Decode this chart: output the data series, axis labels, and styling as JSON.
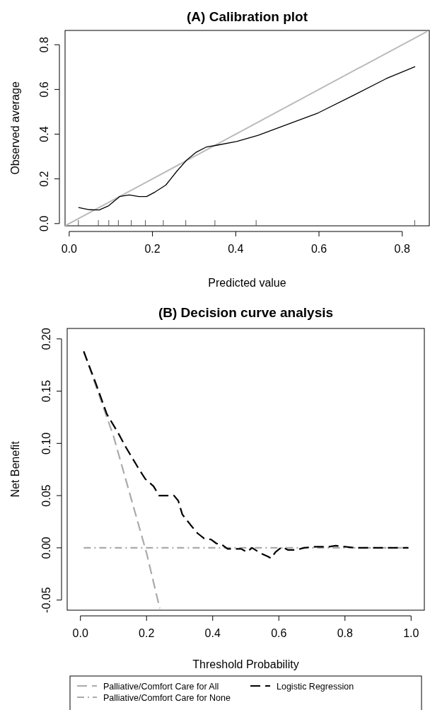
{
  "chart_data": [
    {
      "type": "line",
      "title": "(A) Calibration plot",
      "xlabel": "Predicted value",
      "ylabel": "Observed average",
      "xlim": [
        -0.01,
        0.865
      ],
      "ylim": [
        -0.01,
        0.864
      ],
      "xticks": [
        {
          "value": 0,
          "label": "0.0"
        },
        0.2,
        0.4,
        0.6,
        0.8,
        {
          "value": 0.022,
          "label": null
        },
        {
          "value": 0.07,
          "label": null
        },
        {
          "value": 0.095,
          "label": null
        },
        {
          "value": 0.118,
          "label": null
        },
        {
          "value": 0.149,
          "label": null
        },
        {
          "value": 0.183,
          "label": null
        },
        {
          "value": 0.226,
          "label": null
        },
        {
          "value": 0.28,
          "label": null
        },
        {
          "value": 0.35,
          "label": null
        },
        {
          "value": 0.449,
          "label": null
        },
        {
          "value": 0.83,
          "label": null
        }
      ],
      "yticks": [
        {
          "value": 0,
          "label": "0.0"
        },
        0.2,
        0.4,
        0.6,
        0.8
      ],
      "grid": false,
      "legend": false,
      "series": [
        {
          "color": "#bbbbbb",
          "line_style": "solid",
          "x": [
            -0.01,
            0.86
          ],
          "values": [
            -0.01,
            0.86
          ]
        },
        {
          "color": "#000000",
          "line_style": "solid",
          "x": [
            0.022,
            0.049,
            0.072,
            0.095,
            0.121,
            0.144,
            0.167,
            0.186,
            0.206,
            0.232,
            0.258,
            0.281,
            0.304,
            0.33,
            0.356,
            0.402,
            0.454,
            0.519,
            0.598,
            0.683,
            0.761,
            0.831
          ],
          "values": [
            0.072,
            0.062,
            0.061,
            0.08,
            0.121,
            0.128,
            0.121,
            0.121,
            0.141,
            0.172,
            0.233,
            0.282,
            0.318,
            0.343,
            0.351,
            0.367,
            0.395,
            0.44,
            0.495,
            0.574,
            0.648,
            0.702
          ]
        }
      ]
    },
    {
      "type": "line",
      "title": "(B) Decision curve analysis",
      "xlabel": "Threshold Probability",
      "ylabel": "Net Benefit",
      "xlim": [
        -0.04,
        1.04
      ],
      "ylim": [
        -0.0597,
        0.21
      ],
      "xticks": [
        {
          "value": 0,
          "label": "0.0"
        },
        0.2,
        0.4,
        0.6,
        0.8,
        {
          "value": 1,
          "label": "1.0"
        }
      ],
      "yticks": [
        {
          "value": -0.05,
          "label": "-0.05"
        },
        {
          "value": 0,
          "label": "0.00"
        },
        {
          "value": 0.05,
          "label": "0.05"
        },
        {
          "value": 0.1,
          "label": "0.10"
        },
        {
          "value": 0.15,
          "label": "0.15"
        },
        {
          "value": 0.2,
          "label": "0.20"
        }
      ],
      "grid": false,
      "legend": "bottom",
      "series": [
        {
          "name": "Palliative/Comfort Care for All",
          "color": "#aaaaaa",
          "line_style": "dashed",
          "x": [
            0.01,
            0.1,
            0.2,
            0.24
          ],
          "values": [
            0.188,
            0.107,
            -0.005,
            -0.058
          ]
        },
        {
          "name": "Palliative/Comfort Care for None",
          "color": "#aaaaaa",
          "line_style": "dotted",
          "x": [
            0.01,
            0.99
          ],
          "values": [
            0,
            0
          ]
        },
        {
          "name": "Logistic Regression",
          "color": "#000000",
          "line_style": "dashed",
          "x": [
            0.01,
            0.047,
            0.08,
            0.114,
            0.138,
            0.172,
            0.196,
            0.221,
            0.238,
            0.254,
            0.283,
            0.296,
            0.308,
            0.333,
            0.354,
            0.374,
            0.395,
            0.412,
            0.424,
            0.445,
            0.486,
            0.503,
            0.519,
            0.544,
            0.565,
            0.577,
            0.59,
            0.602,
            0.611,
            0.627,
            0.652,
            0.677,
            0.71,
            0.751,
            0.772,
            0.801,
            0.834,
            0.992
          ],
          "values": [
            0.188,
            0.157,
            0.128,
            0.11,
            0.096,
            0.078,
            0.066,
            0.059,
            0.05,
            0.05,
            0.05,
            0.045,
            0.032,
            0.022,
            0.014,
            0.009,
            0.008,
            0.004,
            0.004,
            -0.001,
            -0.001,
            -0.004,
            0,
            -0.005,
            -0.008,
            -0.01,
            -0.004,
            -0.001,
            0.001,
            -0.002,
            -0.002,
            0,
            0.001,
            0.001,
            0.002,
            0.001,
            0,
            0
          ]
        }
      ]
    }
  ]
}
